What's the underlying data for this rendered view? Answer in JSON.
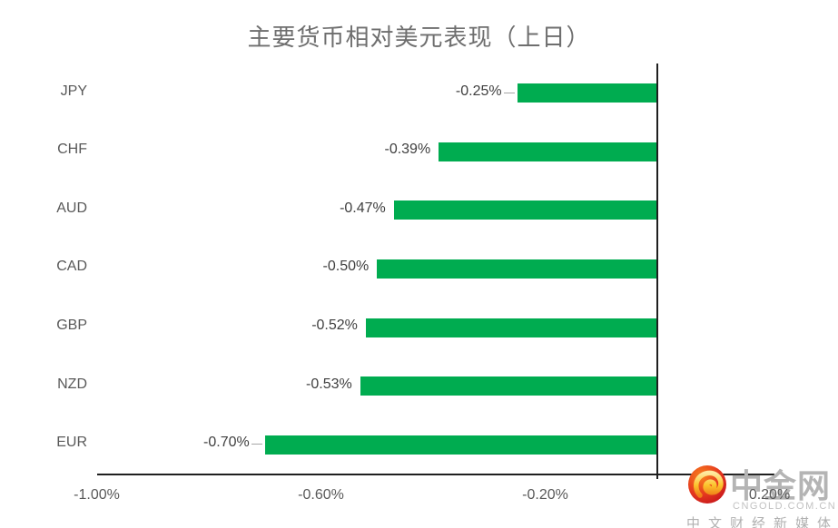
{
  "title": "主要货币相对美元表现（上日）",
  "chart_data": {
    "type": "bar",
    "orientation": "horizontal",
    "title": "主要货币相对美元表现（上日）",
    "categories": [
      "JPY",
      "CHF",
      "AUD",
      "CAD",
      "GBP",
      "NZD",
      "EUR"
    ],
    "values": [
      -0.25,
      -0.39,
      -0.47,
      -0.5,
      -0.52,
      -0.53,
      -0.7
    ],
    "value_labels": [
      "-0.25%",
      "-0.39%",
      "-0.47%",
      "-0.50%",
      "-0.52%",
      "-0.53%",
      "-0.70%"
    ],
    "unit": "percent",
    "xlim": [
      -1.0,
      0.2
    ],
    "x_ticks": [
      {
        "value": -1.0,
        "label": "-1.00%"
      },
      {
        "value": -0.6,
        "label": "-0.60%"
      },
      {
        "value": -0.2,
        "label": "-0.20%"
      },
      {
        "value": 0.2,
        "label": "0.20%"
      }
    ],
    "grid": false,
    "legend": "none",
    "bar_color": "#00AC50",
    "leader_line_items": [
      "JPY",
      "EUR"
    ]
  },
  "watermark": {
    "logo_icon": "cngold-cloud-logo",
    "name": "中金网",
    "domain": "CNGOLD.COM.CN",
    "tagline": "中文财经新媒体"
  },
  "colors": {
    "bar_green": "#00AC50",
    "axis_line": "#1f1f1f",
    "title_text": "#6e6e6e",
    "category_text": "#595959",
    "value_text": "#3f3f3f",
    "tick_text": "#595959",
    "leader_line": "#a6a6a6",
    "watermark_text": "#b4b4b4",
    "logo_red": "#d8251e",
    "logo_gold": "#fcc42c"
  }
}
